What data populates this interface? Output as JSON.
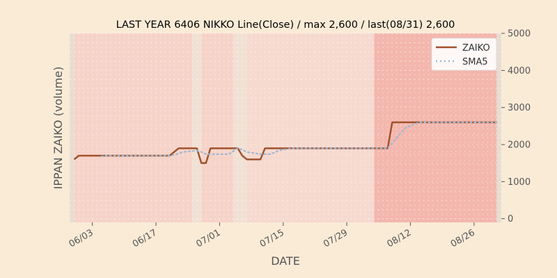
{
  "chart_data": {
    "type": "line",
    "title": "LAST YEAR 6406 NIKKO Line(Close) / max 2,600 / last(08/31) 2,600",
    "xlabel": "DATE",
    "ylabel": "IPPAN ZAIKO (volume)",
    "y_axis_side": "right",
    "ylim": [
      -100,
      5000
    ],
    "yticks": [
      0,
      1000,
      2000,
      3000,
      4000,
      5000
    ],
    "ytick_labels": [
      "0",
      "1000",
      "2000",
      "3000",
      "4000",
      "5000"
    ],
    "xlim": [
      "2023-05-29",
      "2023-09-01"
    ],
    "xticks": [
      "2023-06-03",
      "2023-06-17",
      "2023-07-01",
      "2023-07-15",
      "2023-07-29",
      "2023-08-12",
      "2023-08-26"
    ],
    "xtick_labels": [
      "06/03",
      "06/17",
      "07/01",
      "07/15",
      "07/29",
      "08/12",
      "08/26"
    ],
    "grid": true,
    "legend_position": "top-right",
    "shaded_regions": [
      {
        "from": "2023-05-29",
        "to": "2023-05-30",
        "color": "#e8ddd2"
      },
      {
        "from": "2023-05-30",
        "to": "2023-06-25",
        "color": "#f6d3c8"
      },
      {
        "from": "2023-06-25",
        "to": "2023-06-27",
        "color": "#f1e0d4"
      },
      {
        "from": "2023-06-27",
        "to": "2023-07-04",
        "color": "#f6d3c8"
      },
      {
        "from": "2023-07-04",
        "to": "2023-07-07",
        "color": "#f1e0d4"
      },
      {
        "from": "2023-07-07",
        "to": "2023-08-04",
        "color": "#f6d9cf"
      },
      {
        "from": "2023-08-04",
        "to": "2023-08-31",
        "color": "#f3b7ad"
      },
      {
        "from": "2023-08-31",
        "to": "2023-09-01",
        "color": "#e8ddd2"
      }
    ],
    "series": [
      {
        "name": "ZAIKO",
        "color": "#a0522d",
        "style": "solid",
        "x": [
          "2023-05-30",
          "2023-05-31",
          "2023-06-01",
          "2023-06-02",
          "2023-06-05",
          "2023-06-06",
          "2023-06-07",
          "2023-06-08",
          "2023-06-09",
          "2023-06-12",
          "2023-06-13",
          "2023-06-14",
          "2023-06-15",
          "2023-06-16",
          "2023-06-19",
          "2023-06-20",
          "2023-06-21",
          "2023-06-22",
          "2023-06-23",
          "2023-06-26",
          "2023-06-27",
          "2023-06-28",
          "2023-06-29",
          "2023-06-30",
          "2023-07-03",
          "2023-07-04",
          "2023-07-05",
          "2023-07-06",
          "2023-07-07",
          "2023-07-10",
          "2023-07-11",
          "2023-07-12",
          "2023-07-13",
          "2023-07-14",
          "2023-07-17",
          "2023-07-18",
          "2023-07-19",
          "2023-07-20",
          "2023-07-21",
          "2023-07-24",
          "2023-07-25",
          "2023-07-26",
          "2023-07-27",
          "2023-07-28",
          "2023-07-31",
          "2023-08-01",
          "2023-08-02",
          "2023-08-03",
          "2023-08-04",
          "2023-08-07",
          "2023-08-08",
          "2023-08-09",
          "2023-08-10",
          "2023-08-11",
          "2023-08-14",
          "2023-08-15",
          "2023-08-16",
          "2023-08-17",
          "2023-08-18",
          "2023-08-21",
          "2023-08-22",
          "2023-08-23",
          "2023-08-24",
          "2023-08-25",
          "2023-08-28",
          "2023-08-29",
          "2023-08-30",
          "2023-08-31"
        ],
        "values": [
          1600,
          1700,
          1700,
          1700,
          1700,
          1700,
          1700,
          1700,
          1700,
          1700,
          1700,
          1700,
          1700,
          1700,
          1700,
          1700,
          1800,
          1900,
          1900,
          1900,
          1500,
          1500,
          1900,
          1900,
          1900,
          1900,
          1900,
          1700,
          1600,
          1600,
          1900,
          1900,
          1900,
          1900,
          1900,
          1900,
          1900,
          1900,
          1900,
          1900,
          1900,
          1900,
          1900,
          1900,
          1900,
          1900,
          1900,
          1900,
          1900,
          1900,
          2600,
          2600,
          2600,
          2600,
          2600,
          2600,
          2600,
          2600,
          2600,
          2600,
          2600,
          2600,
          2600,
          2600,
          2600,
          2600,
          2600,
          2600
        ]
      },
      {
        "name": "SMA5",
        "color": "#9fb7d0",
        "style": "dotted",
        "x": [
          "2023-06-05",
          "2023-06-06",
          "2023-06-07",
          "2023-06-08",
          "2023-06-09",
          "2023-06-12",
          "2023-06-13",
          "2023-06-14",
          "2023-06-15",
          "2023-06-16",
          "2023-06-19",
          "2023-06-20",
          "2023-06-21",
          "2023-06-22",
          "2023-06-23",
          "2023-06-26",
          "2023-06-27",
          "2023-06-28",
          "2023-06-29",
          "2023-06-30",
          "2023-07-03",
          "2023-07-04",
          "2023-07-05",
          "2023-07-06",
          "2023-07-07",
          "2023-07-10",
          "2023-07-11",
          "2023-07-12",
          "2023-07-13",
          "2023-07-14",
          "2023-07-17",
          "2023-07-18",
          "2023-07-19",
          "2023-07-20",
          "2023-07-21",
          "2023-07-24",
          "2023-07-25",
          "2023-07-26",
          "2023-07-27",
          "2023-07-28",
          "2023-07-31",
          "2023-08-01",
          "2023-08-02",
          "2023-08-03",
          "2023-08-04",
          "2023-08-07",
          "2023-08-08",
          "2023-08-09",
          "2023-08-10",
          "2023-08-11",
          "2023-08-14",
          "2023-08-15",
          "2023-08-16",
          "2023-08-17",
          "2023-08-18",
          "2023-08-21",
          "2023-08-22",
          "2023-08-23",
          "2023-08-24",
          "2023-08-25",
          "2023-08-28",
          "2023-08-29",
          "2023-08-30",
          "2023-08-31"
        ],
        "values": [
          1680,
          1700,
          1700,
          1700,
          1700,
          1700,
          1700,
          1700,
          1700,
          1700,
          1700,
          1700,
          1720,
          1760,
          1800,
          1840,
          1800,
          1740,
          1740,
          1740,
          1740,
          1820,
          1900,
          1860,
          1800,
          1740,
          1740,
          1740,
          1780,
          1840,
          1900,
          1900,
          1900,
          1900,
          1900,
          1900,
          1900,
          1900,
          1900,
          1900,
          1900,
          1900,
          1900,
          1900,
          1900,
          1900,
          2040,
          2180,
          2320,
          2460,
          2600,
          2600,
          2600,
          2600,
          2600,
          2600,
          2600,
          2600,
          2600,
          2600,
          2600,
          2600,
          2600,
          2600
        ]
      }
    ]
  }
}
